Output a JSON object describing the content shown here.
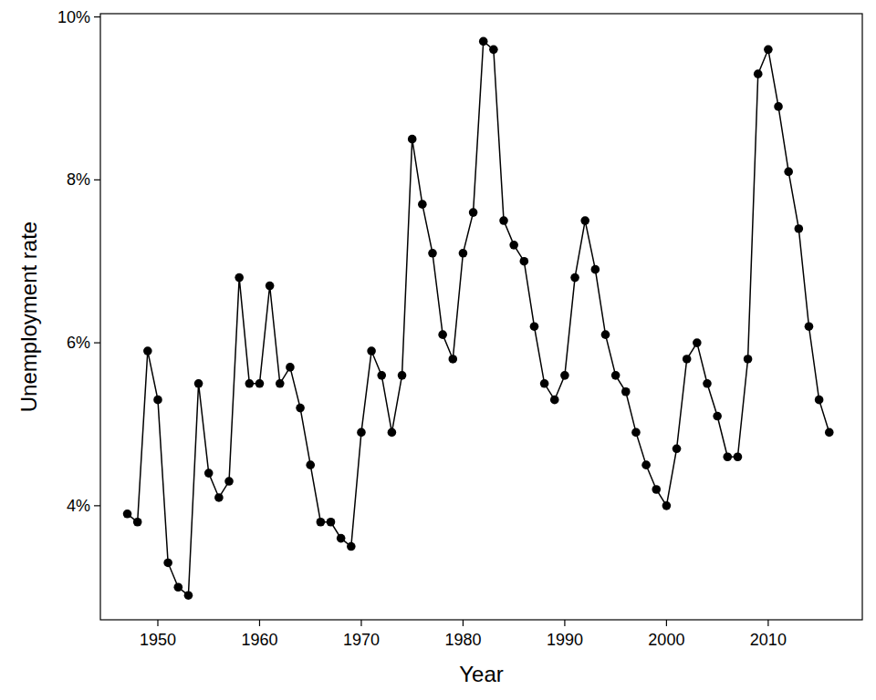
{
  "chart_data": {
    "type": "line",
    "x_label": "Year",
    "y_label": "Unemployment rate",
    "x": [
      1947,
      1948,
      1949,
      1950,
      1951,
      1952,
      1953,
      1954,
      1955,
      1956,
      1957,
      1958,
      1959,
      1960,
      1961,
      1962,
      1963,
      1964,
      1965,
      1966,
      1967,
      1968,
      1969,
      1970,
      1971,
      1972,
      1973,
      1974,
      1975,
      1976,
      1977,
      1978,
      1979,
      1980,
      1981,
      1982,
      1983,
      1984,
      1985,
      1986,
      1987,
      1988,
      1989,
      1990,
      1991,
      1992,
      1993,
      1994,
      1995,
      1996,
      1997,
      1998,
      1999,
      2000,
      2001,
      2002,
      2003,
      2004,
      2005,
      2006,
      2007,
      2008,
      2009,
      2010,
      2011,
      2012,
      2013,
      2014,
      2015,
      2016
    ],
    "values": [
      3.9,
      3.8,
      5.9,
      5.3,
      3.3,
      3.0,
      2.9,
      5.5,
      4.4,
      4.1,
      4.3,
      6.8,
      5.5,
      5.5,
      6.7,
      5.5,
      5.7,
      5.2,
      4.5,
      3.8,
      3.8,
      3.6,
      3.5,
      4.9,
      5.9,
      5.6,
      4.9,
      5.6,
      8.5,
      7.7,
      7.1,
      6.1,
      5.8,
      7.1,
      7.6,
      9.7,
      9.6,
      7.5,
      7.2,
      7.0,
      6.2,
      5.5,
      5.3,
      5.6,
      6.8,
      7.5,
      6.9,
      6.1,
      5.6,
      5.4,
      4.9,
      4.5,
      4.2,
      4.0,
      4.7,
      5.8,
      6.0,
      5.5,
      5.1,
      4.6,
      4.6,
      5.8,
      9.3,
      9.6,
      8.9,
      8.1,
      7.4,
      6.2,
      5.3,
      4.9
    ],
    "color": "#000000",
    "marker": "circle",
    "line_style": "solid",
    "grid": false,
    "xlim": [
      1944.35,
      2019.25
    ],
    "xticks": [
      1950,
      1960,
      1970,
      1980,
      1990,
      2000,
      2010
    ],
    "ylim": [
      2.6,
      10.04
    ],
    "yticks": [
      {
        "value": 4,
        "label": "4%"
      },
      {
        "value": 6,
        "label": "6%"
      },
      {
        "value": 8,
        "label": "8%"
      },
      {
        "value": 10,
        "label": "10%"
      }
    ]
  }
}
